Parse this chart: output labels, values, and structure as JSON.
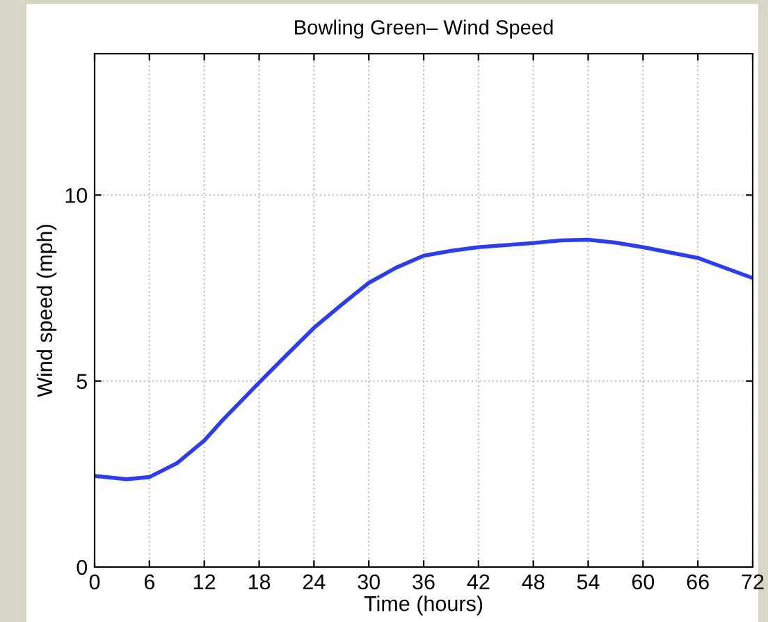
{
  "chart_data": {
    "type": "line",
    "title": "Bowling Green– Wind Speed",
    "xlabel": "Time (hours)",
    "ylabel": "Wind speed (mph)",
    "x": [
      0,
      3.5,
      6,
      9,
      12,
      14,
      18,
      21,
      24,
      27,
      30,
      33,
      36,
      39,
      42,
      48,
      51,
      54,
      57,
      60,
      66,
      72
    ],
    "series": [
      {
        "color": "#2a3cf5",
        "values": [
          2.45,
          2.36,
          2.42,
          2.79,
          3.4,
          3.95,
          4.96,
          5.7,
          6.43,
          7.05,
          7.64,
          8.05,
          8.37,
          8.5,
          8.6,
          8.71,
          8.78,
          8.8,
          8.72,
          8.6,
          8.31,
          7.77
        ]
      }
    ],
    "xlim": [
      0,
      72
    ],
    "xticks": [
      0,
      6,
      12,
      18,
      24,
      30,
      36,
      42,
      48,
      54,
      60,
      66,
      72
    ],
    "ylim": [
      0,
      13.8
    ],
    "yticks": [
      0,
      5,
      10
    ],
    "grid": true,
    "legend": false,
    "marker": "none",
    "line_style": "solid"
  }
}
